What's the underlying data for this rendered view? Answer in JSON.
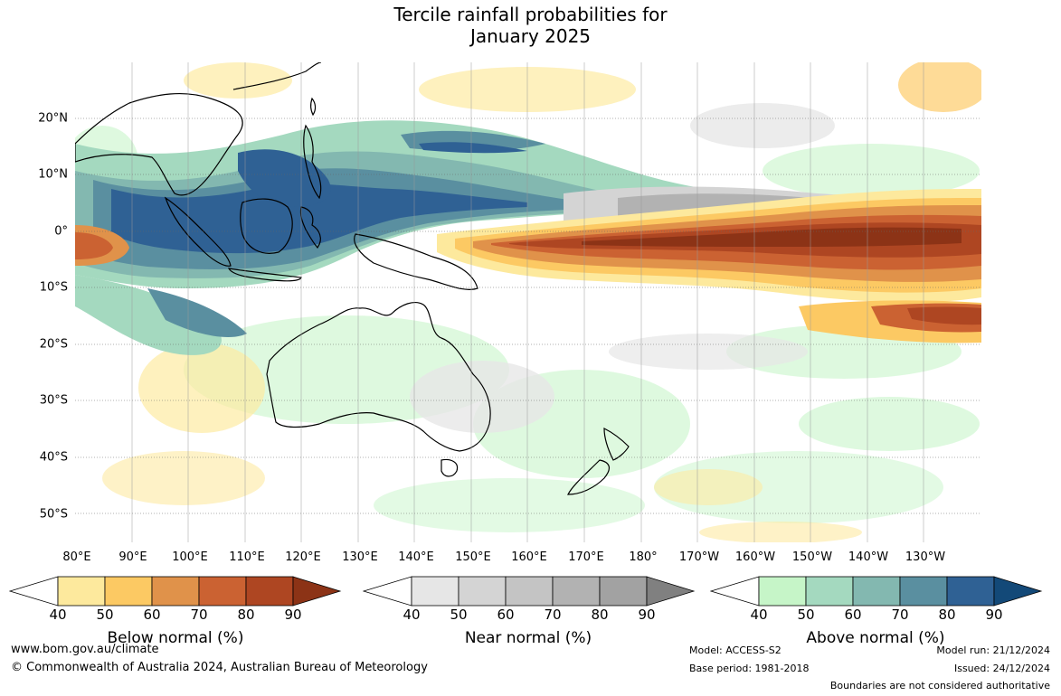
{
  "title": {
    "line1": "Tercile rainfall probabilities for",
    "line2": "January 2025"
  },
  "map": {
    "lat_labels": [
      "20°N",
      "10°N",
      "0°",
      "10°S",
      "20°S",
      "30°S",
      "40°S",
      "50°S"
    ],
    "lon_labels": [
      "80°E",
      "90°E",
      "100°E",
      "110°E",
      "120°E",
      "130°E",
      "140°E",
      "150°E",
      "160°E",
      "170°E",
      "180°",
      "170°W",
      "160°W",
      "150°W",
      "140°W",
      "130°W"
    ],
    "background_color": "#ffffff",
    "land_outline_color": "#000000"
  },
  "legends": {
    "below": {
      "title": "Below normal (%)",
      "ticks": [
        "40",
        "50",
        "60",
        "70",
        "80",
        "90"
      ],
      "colors": [
        "#ffffff",
        "#fde99d",
        "#fcc963",
        "#e0924a",
        "#cb6232",
        "#ae4622",
        "#8c3316"
      ]
    },
    "near": {
      "title": "Near normal (%)",
      "ticks": [
        "40",
        "50",
        "60",
        "70",
        "80",
        "90"
      ],
      "colors": [
        "#ffffff",
        "#e6e6e6",
        "#d4d4d4",
        "#c4c4c4",
        "#b2b2b2",
        "#a2a2a2",
        "#808080"
      ]
    },
    "above": {
      "title": "Above normal (%)",
      "ticks": [
        "40",
        "50",
        "60",
        "70",
        "80",
        "90"
      ],
      "colors": [
        "#ffffff",
        "#c6f5c8",
        "#a4d9bf",
        "#83b8b0",
        "#5a8fa0",
        "#2f6194",
        "#134978"
      ]
    }
  },
  "footer": {
    "website": "www.bom.gov.au/climate",
    "copyright": "© Commonwealth of Australia 2024, Australian Bureau of Meteorology",
    "model": "Model: ACCESS-S2",
    "base_period": "Base period: 1981-2018",
    "model_run": "Model run: 21/12/2024",
    "issued": "Issued: 24/12/2024",
    "disclaimer": "Boundaries are not considered authoritative"
  }
}
